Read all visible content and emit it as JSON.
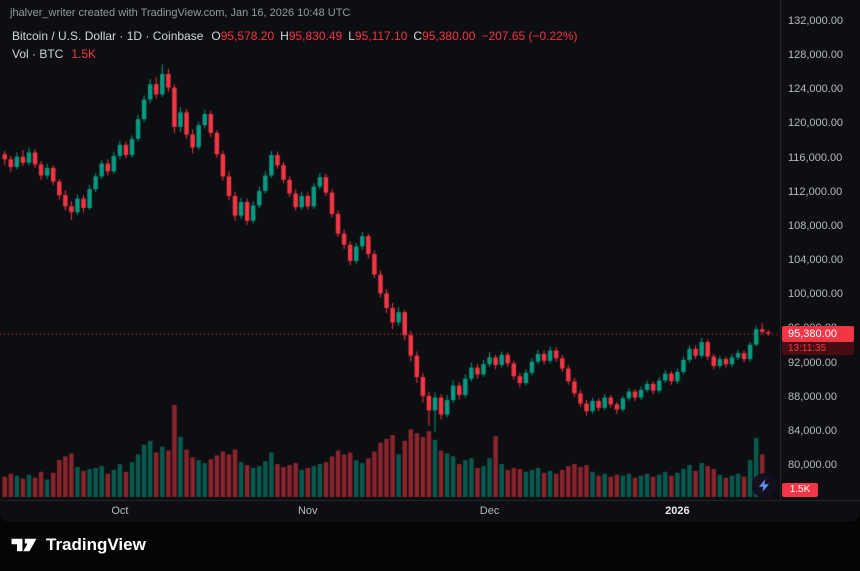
{
  "attribution": "jhalver_writer created with TradingView.com, Jan 16, 2026 10:48 UTC",
  "legend": {
    "title": "Bitcoin / U.S. Dollar · 1D · Coinbase",
    "ohlc": [
      {
        "label": "O",
        "value": "95,578.20"
      },
      {
        "label": "H",
        "value": "95,830.49"
      },
      {
        "label": "L",
        "value": "95,117.10"
      },
      {
        "label": "C",
        "value": "95,380.00"
      }
    ],
    "change": "−207.65 (−0.22%)",
    "volume_label": "Vol · BTC",
    "volume_value": "1.5K"
  },
  "badges": {
    "price": "95,380.00",
    "countdown": "13:11:35",
    "volume": "1.5K"
  },
  "footer": {
    "logo_text": "TradingView"
  },
  "icons": {
    "avatar": "lightning-bolt",
    "footer": "tradingview-mark"
  },
  "theme": {
    "background": "#0d0e11",
    "up": "#089981",
    "down": "#f23645",
    "vol_up": "rgba(8,153,129,0.55)",
    "vol_down": "rgba(242,54,69,0.55)",
    "axis_text": "#b7bac1",
    "badge_bg": "#f23645",
    "countdown_bg": "#470d13"
  },
  "chart_data": {
    "type": "candlestick",
    "title": "Bitcoin / U.S. Dollar · 1D · Coinbase",
    "interval": "1D",
    "exchange": "Coinbase",
    "y_axis": {
      "min": 80000,
      "max": 132000,
      "tick_step": 4000,
      "labels": [
        "132,000.00",
        "128,000.00",
        "124,000.00",
        "120,000.00",
        "116,000.00",
        "112,000.00",
        "108,000.00",
        "104,000.00",
        "100,000.00",
        "96,000.00",
        "92,000.00",
        "88,000.00",
        "84,000.00",
        "80,000.00"
      ]
    },
    "x_axis": {
      "labels": [
        {
          "text": "Oct",
          "index": 19,
          "strong": false
        },
        {
          "text": "Nov",
          "index": 50,
          "strong": false
        },
        {
          "text": "Dec",
          "index": 80,
          "strong": false
        },
        {
          "text": "2026",
          "index": 111,
          "strong": true
        }
      ]
    },
    "last": {
      "open": 95578.2,
      "high": 95830.49,
      "low": 95117.1,
      "close": 95380.0,
      "change": -207.65,
      "change_pct": -0.22,
      "countdown": "13:11:35"
    },
    "volume": {
      "unit": "K BTC",
      "last": 1.5
    },
    "candles": [
      [
        116400,
        116800,
        115100,
        115800,
        2.1
      ],
      [
        115800,
        116200,
        114300,
        114900,
        2.4
      ],
      [
        114900,
        116600,
        114600,
        116100,
        2.2
      ],
      [
        116100,
        116900,
        115000,
        115400,
        1.9
      ],
      [
        115400,
        117200,
        115100,
        116600,
        2.3
      ],
      [
        116600,
        117000,
        114800,
        115200,
        2.0
      ],
      [
        115200,
        115600,
        113400,
        113900,
        2.6
      ],
      [
        113900,
        115300,
        113500,
        114800,
        1.8
      ],
      [
        114800,
        115100,
        112800,
        113200,
        2.5
      ],
      [
        113200,
        113500,
        111100,
        111600,
        3.8
      ],
      [
        111600,
        112200,
        109800,
        110300,
        4.2
      ],
      [
        110300,
        110900,
        108700,
        109600,
        4.5
      ],
      [
        109600,
        111700,
        109300,
        111200,
        3.1
      ],
      [
        111200,
        111600,
        109600,
        110100,
        2.7
      ],
      [
        110100,
        112800,
        109900,
        112300,
        2.9
      ],
      [
        112300,
        114200,
        112000,
        113800,
        3.0
      ],
      [
        113800,
        115700,
        113500,
        115300,
        3.2
      ],
      [
        115300,
        115800,
        113900,
        114400,
        2.4
      ],
      [
        114400,
        116700,
        114100,
        116200,
        2.8
      ],
      [
        116200,
        118000,
        115800,
        117500,
        3.4
      ],
      [
        117500,
        117900,
        115900,
        116300,
        2.6
      ],
      [
        116300,
        118600,
        116000,
        118200,
        3.6
      ],
      [
        118200,
        121000,
        117900,
        120500,
        4.4
      ],
      [
        120500,
        123300,
        120200,
        122800,
        5.4
      ],
      [
        122800,
        125200,
        122400,
        124600,
        5.8
      ],
      [
        124600,
        125400,
        122900,
        123400,
        4.6
      ],
      [
        123400,
        126900,
        123100,
        125800,
        5.2
      ],
      [
        125800,
        126400,
        123700,
        124200,
        4.8
      ],
      [
        124200,
        124600,
        118900,
        119600,
        9.5
      ],
      [
        119600,
        121900,
        119000,
        121300,
        6.2
      ],
      [
        121300,
        121700,
        118200,
        118700,
        4.9
      ],
      [
        118700,
        119300,
        116500,
        117200,
        4.1
      ],
      [
        117200,
        120200,
        116900,
        119800,
        3.8
      ],
      [
        119800,
        121600,
        119400,
        121100,
        3.5
      ],
      [
        121100,
        121500,
        118400,
        118900,
        3.9
      ],
      [
        118900,
        119200,
        116000,
        116400,
        4.3
      ],
      [
        116400,
        116800,
        113300,
        113800,
        4.7
      ],
      [
        113800,
        114400,
        111000,
        111500,
        4.4
      ],
      [
        111500,
        112000,
        108600,
        109200,
        4.9
      ],
      [
        109200,
        111300,
        108800,
        110800,
        3.6
      ],
      [
        110800,
        111200,
        108100,
        108600,
        3.3
      ],
      [
        108600,
        110900,
        108300,
        110400,
        3.0
      ],
      [
        110400,
        112600,
        110100,
        112100,
        3.2
      ],
      [
        112100,
        114400,
        111800,
        113900,
        3.7
      ],
      [
        113900,
        116800,
        113600,
        116300,
        4.6
      ],
      [
        116300,
        116700,
        114700,
        115100,
        3.4
      ],
      [
        115100,
        115500,
        113000,
        113400,
        3.1
      ],
      [
        113400,
        113800,
        111400,
        111800,
        3.3
      ],
      [
        111800,
        112300,
        109800,
        110200,
        3.5
      ],
      [
        110200,
        112000,
        109900,
        111500,
        2.8
      ],
      [
        111500,
        111900,
        109900,
        110300,
        3.0
      ],
      [
        110300,
        113000,
        110000,
        112600,
        3.2
      ],
      [
        112600,
        114200,
        112300,
        113700,
        3.4
      ],
      [
        113700,
        114100,
        111500,
        111900,
        3.6
      ],
      [
        111900,
        112300,
        109000,
        109400,
        4.2
      ],
      [
        109400,
        109800,
        106700,
        107100,
        4.8
      ],
      [
        107100,
        107600,
        105300,
        105800,
        4.4
      ],
      [
        105800,
        106200,
        103400,
        103900,
        4.6
      ],
      [
        103900,
        106000,
        103500,
        105600,
        3.8
      ],
      [
        105600,
        107300,
        105200,
        106800,
        3.5
      ],
      [
        106800,
        107100,
        104200,
        104700,
        4.0
      ],
      [
        104700,
        105100,
        101900,
        102300,
        4.7
      ],
      [
        102300,
        102800,
        99600,
        100100,
        5.6
      ],
      [
        100100,
        100600,
        97800,
        98400,
        6.0
      ],
      [
        98400,
        99000,
        95900,
        96700,
        6.4
      ],
      [
        96700,
        98500,
        96300,
        97900,
        4.4
      ],
      [
        97900,
        98200,
        94600,
        95200,
        5.8
      ],
      [
        95200,
        95700,
        92100,
        92800,
        7.0
      ],
      [
        92800,
        93300,
        89600,
        90300,
        6.6
      ],
      [
        90300,
        90800,
        87300,
        88100,
        6.2
      ],
      [
        88100,
        88600,
        84600,
        86400,
        6.8
      ],
      [
        86400,
        88500,
        83900,
        87900,
        5.9
      ],
      [
        87900,
        88300,
        85300,
        85900,
        4.8
      ],
      [
        85900,
        88200,
        85600,
        87600,
        4.5
      ],
      [
        87600,
        89900,
        87300,
        89300,
        4.2
      ],
      [
        89300,
        89700,
        87700,
        88200,
        3.4
      ],
      [
        88200,
        90600,
        87900,
        90100,
        3.8
      ],
      [
        90100,
        92000,
        89800,
        91400,
        4.0
      ],
      [
        91400,
        91800,
        90100,
        90600,
        3.0
      ],
      [
        90600,
        92300,
        90300,
        91800,
        3.2
      ],
      [
        91800,
        93200,
        91500,
        92600,
        4.0
      ],
      [
        92600,
        92900,
        91200,
        91700,
        6.3
      ],
      [
        91700,
        93300,
        91400,
        92900,
        3.4
      ],
      [
        92900,
        93200,
        91500,
        91900,
        2.8
      ],
      [
        91900,
        92200,
        90000,
        90400,
        3.0
      ],
      [
        90400,
        90800,
        89100,
        89600,
        2.9
      ],
      [
        89600,
        91200,
        89300,
        90800,
        2.6
      ],
      [
        90800,
        92500,
        90500,
        92100,
        2.8
      ],
      [
        92100,
        93500,
        91800,
        93000,
        3.0
      ],
      [
        93000,
        93400,
        91800,
        92200,
        2.5
      ],
      [
        92200,
        93900,
        91900,
        93400,
        2.7
      ],
      [
        93400,
        93800,
        92100,
        92500,
        2.4
      ],
      [
        92500,
        92900,
        90900,
        91300,
        2.8
      ],
      [
        91300,
        91700,
        89400,
        89800,
        3.2
      ],
      [
        89800,
        90200,
        88000,
        88400,
        3.4
      ],
      [
        88400,
        88800,
        86800,
        87200,
        3.1
      ],
      [
        87200,
        87600,
        85800,
        86300,
        3.3
      ],
      [
        86300,
        87900,
        86000,
        87500,
        2.6
      ],
      [
        87500,
        87800,
        86300,
        86700,
        2.2
      ],
      [
        86700,
        88300,
        86400,
        87900,
        2.4
      ],
      [
        87900,
        88200,
        86700,
        87100,
        2.1
      ],
      [
        87100,
        87400,
        86000,
        86500,
        2.3
      ],
      [
        86500,
        88100,
        86200,
        87800,
        2.2
      ],
      [
        87800,
        89000,
        87500,
        88600,
        2.4
      ],
      [
        88600,
        88900,
        87500,
        87900,
        2.0
      ],
      [
        87900,
        89200,
        87600,
        88800,
        2.2
      ],
      [
        88800,
        89900,
        88500,
        89500,
        2.4
      ],
      [
        89500,
        89800,
        88300,
        88700,
        2.1
      ],
      [
        88700,
        90300,
        88400,
        89900,
        2.3
      ],
      [
        89900,
        91100,
        89600,
        90700,
        2.6
      ],
      [
        90700,
        91000,
        89400,
        89800,
        2.2
      ],
      [
        89800,
        91300,
        89500,
        90900,
        2.5
      ],
      [
        90900,
        92700,
        90600,
        92300,
        2.9
      ],
      [
        92300,
        94000,
        92000,
        93600,
        3.3
      ],
      [
        93600,
        94000,
        92400,
        92800,
        2.7
      ],
      [
        92800,
        94900,
        92500,
        94400,
        3.5
      ],
      [
        94400,
        94700,
        92300,
        92700,
        3.2
      ],
      [
        92700,
        93000,
        91200,
        91600,
        2.9
      ],
      [
        91600,
        92800,
        91300,
        92400,
        2.3
      ],
      [
        92400,
        92700,
        91400,
        91800,
        2.0
      ],
      [
        91800,
        93000,
        91500,
        92600,
        2.2
      ],
      [
        92600,
        93500,
        92300,
        93100,
        2.4
      ],
      [
        93100,
        93400,
        92000,
        92400,
        2.1
      ],
      [
        92400,
        94400,
        92100,
        94100,
        3.8
      ],
      [
        94100,
        96300,
        93900,
        95900,
        6.1
      ],
      [
        95900,
        96600,
        95300,
        95587.65,
        4.4
      ],
      [
        95578.2,
        95830.49,
        95117.1,
        95380,
        1.5
      ]
    ]
  }
}
